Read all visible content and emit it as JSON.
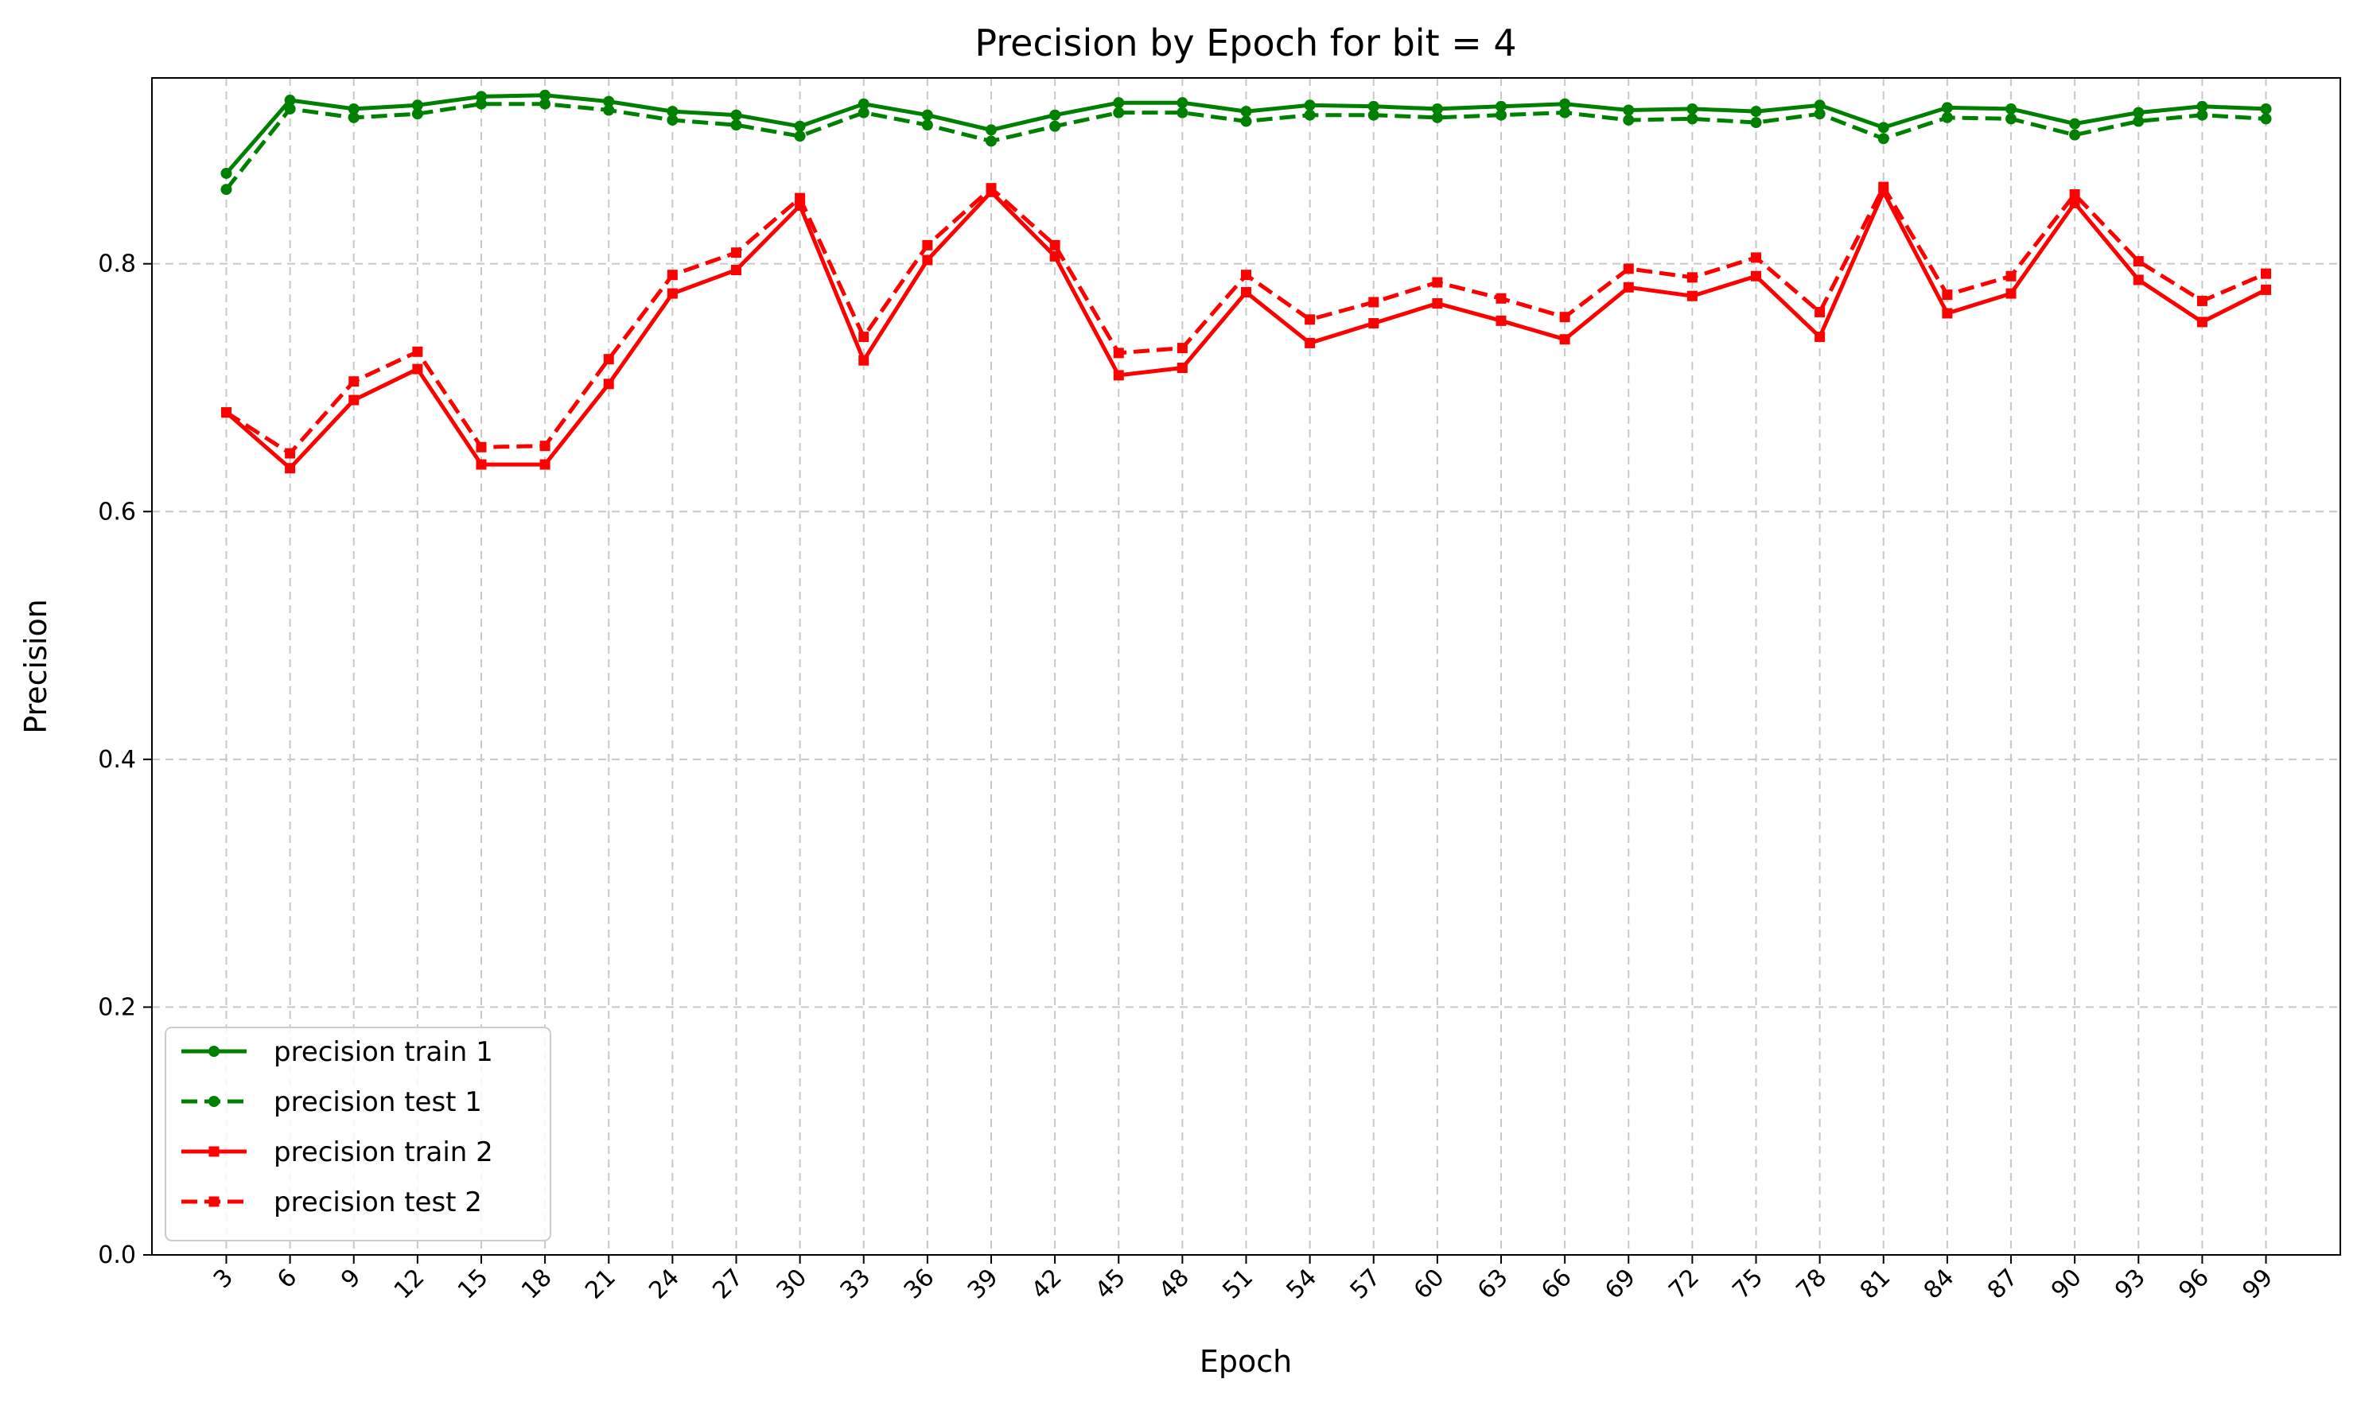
{
  "chart_data": {
    "type": "line",
    "title": "Precision by Epoch for bit = 4",
    "xlabel": "Epoch",
    "ylabel": "Precision",
    "x": [
      3,
      6,
      9,
      12,
      15,
      18,
      21,
      24,
      27,
      30,
      33,
      36,
      39,
      42,
      45,
      48,
      51,
      54,
      57,
      60,
      63,
      66,
      69,
      72,
      75,
      78,
      81,
      84,
      87,
      90,
      93,
      96,
      99
    ],
    "xlim": [
      -0.5,
      102.5
    ],
    "ylim": [
      0,
      0.95
    ],
    "yticks": [
      0.0,
      0.2,
      0.4,
      0.6,
      0.8
    ],
    "ytick_labels": [
      "0.0",
      "0.2",
      "0.4",
      "0.6",
      "0.8"
    ],
    "xtick_labels": [
      "3",
      "6",
      "9",
      "12",
      "15",
      "18",
      "21",
      "24",
      "27",
      "30",
      "33",
      "36",
      "39",
      "42",
      "45",
      "48",
      "51",
      "54",
      "57",
      "60",
      "63",
      "66",
      "69",
      "72",
      "75",
      "78",
      "81",
      "84",
      "87",
      "90",
      "93",
      "96",
      "99"
    ],
    "grid": true,
    "legend_position": "lower-left",
    "series": [
      {
        "name": "precision train 1",
        "color": "#008000",
        "linestyle": "solid",
        "marker": "circle",
        "values": [
          0.873,
          0.932,
          0.925,
          0.928,
          0.935,
          0.936,
          0.931,
          0.923,
          0.92,
          0.911,
          0.929,
          0.92,
          0.908,
          0.92,
          0.93,
          0.93,
          0.923,
          0.928,
          0.927,
          0.925,
          0.927,
          0.929,
          0.924,
          0.925,
          0.923,
          0.928,
          0.91,
          0.926,
          0.925,
          0.913,
          0.922,
          0.927,
          0.925
        ]
      },
      {
        "name": "precision test 1",
        "color": "#008000",
        "linestyle": "dashed",
        "marker": "circle",
        "values": [
          0.86,
          0.925,
          0.918,
          0.921,
          0.929,
          0.929,
          0.924,
          0.916,
          0.912,
          0.903,
          0.922,
          0.912,
          0.899,
          0.911,
          0.922,
          0.922,
          0.915,
          0.92,
          0.92,
          0.918,
          0.92,
          0.922,
          0.916,
          0.917,
          0.914,
          0.921,
          0.901,
          0.918,
          0.917,
          0.904,
          0.915,
          0.92,
          0.917
        ]
      },
      {
        "name": "precision train 2",
        "color": "#ff0000",
        "linestyle": "solid",
        "marker": "square",
        "values": [
          0.68,
          0.635,
          0.69,
          0.715,
          0.638,
          0.638,
          0.703,
          0.776,
          0.795,
          0.847,
          0.722,
          0.803,
          0.858,
          0.806,
          0.71,
          0.716,
          0.777,
          0.736,
          0.752,
          0.768,
          0.754,
          0.739,
          0.781,
          0.774,
          0.79,
          0.741,
          0.858,
          0.76,
          0.776,
          0.849,
          0.787,
          0.753,
          0.779
        ]
      },
      {
        "name": "precision test 2",
        "color": "#ff0000",
        "linestyle": "dashed",
        "marker": "square",
        "values": [
          0.68,
          0.647,
          0.705,
          0.729,
          0.652,
          0.653,
          0.723,
          0.791,
          0.809,
          0.853,
          0.741,
          0.815,
          0.861,
          0.815,
          0.728,
          0.732,
          0.791,
          0.755,
          0.769,
          0.785,
          0.772,
          0.757,
          0.796,
          0.789,
          0.805,
          0.761,
          0.862,
          0.775,
          0.79,
          0.856,
          0.802,
          0.77,
          0.792
        ]
      }
    ]
  }
}
